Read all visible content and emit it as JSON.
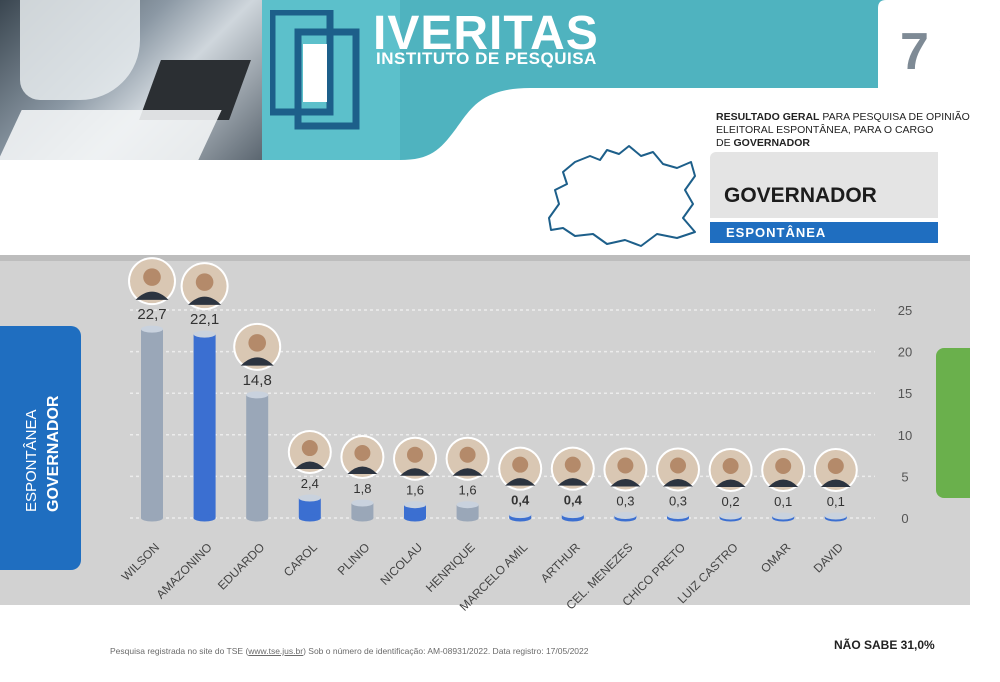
{
  "brand": {
    "name": "IVERITAS",
    "subtitle": "INSTITUTO DE PESQUISA"
  },
  "page_number": "7",
  "result": {
    "bold1": "RESULTADO GERAL",
    "text1": " PARA PESQUISA DE OPINIÃO",
    "line2": "ELEITORAL ESPONTÂNEA,  PARA O CARGO",
    "text3": "DE ",
    "bold3": "GOVERNADOR"
  },
  "office_title": "GOVERNADOR",
  "mode_label": "ESPONTÂNEA",
  "side_label": {
    "line1": "ESPONTÂNEA",
    "line2": "GOVERNADOR"
  },
  "footer": {
    "prefix": "Pesquisa registrada no site do TSE (",
    "link": "www.tse.jus.br",
    "suffix": ") Sob o número de identificação: AM-08931/2022. Data registro: 17/05/2022"
  },
  "nao_sabe": "NÃO SABE 31,0%",
  "colors": {
    "teal": "#4fb3bf",
    "blue": "#1f6ec0",
    "bar_gray": "#9aa7b8",
    "bar_blue": "#3b6fd1",
    "green": "#6ab04c"
  },
  "chart_data": {
    "type": "bar",
    "categories": [
      "WILSON",
      "AMAZONINO",
      "EDUARDO",
      "CAROL",
      "PLINIO",
      "NICOLAU",
      "HENRIQUE",
      "MARCELO AMIL",
      "ARTHUR",
      "CEL. MENEZES",
      "CHICO PRETO",
      "LUIZ CASTRO",
      "OMAR",
      "DAVID"
    ],
    "values": [
      22.7,
      22.1,
      14.8,
      2.4,
      1.8,
      1.6,
      1.6,
      0.4,
      0.4,
      0.3,
      0.3,
      0.2,
      0.1,
      0.1
    ],
    "value_labels": [
      "22,7",
      "22,1",
      "14,8",
      "2,4",
      "1,8",
      "1,6",
      "1,6",
      "0,4",
      "0,4",
      "0,3",
      "0,3",
      "0,2",
      "0,1",
      "0,1"
    ],
    "bar_colors": [
      "#9aa7b8",
      "#3b6fd1",
      "#9aa7b8",
      "#3b6fd1",
      "#9aa7b8",
      "#3b6fd1",
      "#9aa7b8",
      "#3b6fd1",
      "#3b6fd1",
      "#3b6fd1",
      "#3b6fd1",
      "#3b6fd1",
      "#3b6fd1",
      "#3b6fd1"
    ],
    "yticks": [
      "0",
      "5",
      "10",
      "15",
      "20",
      "25"
    ],
    "ylim": [
      0,
      25
    ],
    "grid": true,
    "portraits": true
  }
}
